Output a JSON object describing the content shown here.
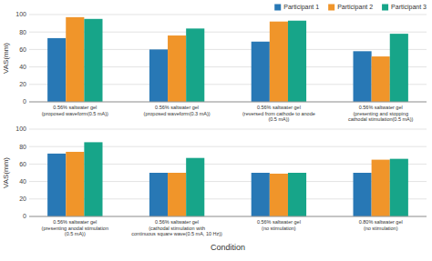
{
  "chart_data": [
    {
      "type": "bar",
      "categories": [
        "0.56% saltwater gel\n(proposed waveform(0.5 mA))",
        "0.56% saltwater gel\n(proposed waveform(0.3 mA))",
        "0.56% saltwater gel\n(reversed from cathode to anode\n(0.5 mA))",
        "0.56% saltwater gel\n(presenting and stopping\ncathodal stimulation(0.5 mA))"
      ],
      "series": [
        {
          "name": "Participant 1",
          "color": "#2878b5",
          "values": [
            73,
            60,
            69,
            58
          ]
        },
        {
          "name": "Participant 2",
          "color": "#f0952a",
          "values": [
            97,
            76,
            92,
            52
          ]
        },
        {
          "name": "Participant 3",
          "color": "#17a589",
          "values": [
            95,
            84,
            93,
            78
          ]
        }
      ],
      "ylabel": "VAS(mm)",
      "ylim": [
        0,
        100
      ],
      "yticks": [
        0,
        20,
        40,
        60,
        80,
        100
      ],
      "grid": true,
      "legend": "top-right"
    },
    {
      "type": "bar",
      "categories": [
        "0.56% saltwater gel\n(presenting anodal stimulation\n(0.5 mA))",
        "0.56% saltwater gel\n(cathodal stimulation with\ncontinuous square wave(0.5 mA, 10 Hz))",
        "0.56% saltwater gel\n(no stimulation)",
        "0.80% saltwater gel\n(no stimulation)"
      ],
      "series": [
        {
          "color": "#2878b5",
          "values": [
            72,
            50,
            50,
            50
          ]
        },
        {
          "color": "#f0952a",
          "values": [
            74,
            50,
            49,
            65
          ]
        },
        {
          "color": "#17a589",
          "values": [
            85,
            67,
            50,
            66
          ]
        }
      ],
      "ylabel": "VAS(mm)",
      "xlabel": "Condition",
      "ylim": [
        0,
        100
      ],
      "yticks": [
        0,
        20,
        40,
        60,
        80,
        100
      ],
      "grid": true
    }
  ]
}
